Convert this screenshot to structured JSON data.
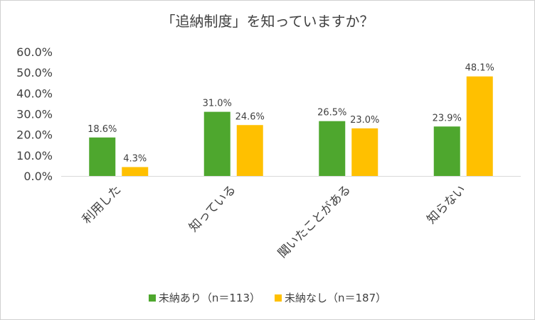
{
  "chart_data": {
    "type": "bar",
    "title": "「追納制度」を知っていますか？",
    "xlabel": "",
    "ylabel": "",
    "categories": [
      "利用した",
      "知っている",
      "聞いたことがある",
      "知らない"
    ],
    "series": [
      {
        "name": "未納あり（n＝113）",
        "values": [
          18.6,
          31.0,
          26.5,
          23.9
        ],
        "labels": [
          "18.6%",
          "31.0%",
          "26.5%",
          "23.9%"
        ],
        "color": "#4ea72e"
      },
      {
        "name": "未納なし（n＝187）",
        "values": [
          4.3,
          24.6,
          23.0,
          48.1
        ],
        "labels": [
          "4.3%",
          "24.6%",
          "23.0%",
          "48.1%"
        ],
        "color": "#ffc000"
      }
    ],
    "ylim": [
      0,
      60
    ],
    "yticks": [
      0,
      10,
      20,
      30,
      40,
      50,
      60
    ],
    "ytick_labels": [
      "0.0%",
      "10.0%",
      "20.0%",
      "30.0%",
      "40.0%",
      "50.0%",
      "60.0%"
    ],
    "grid": false,
    "legend_position": "bottom"
  }
}
